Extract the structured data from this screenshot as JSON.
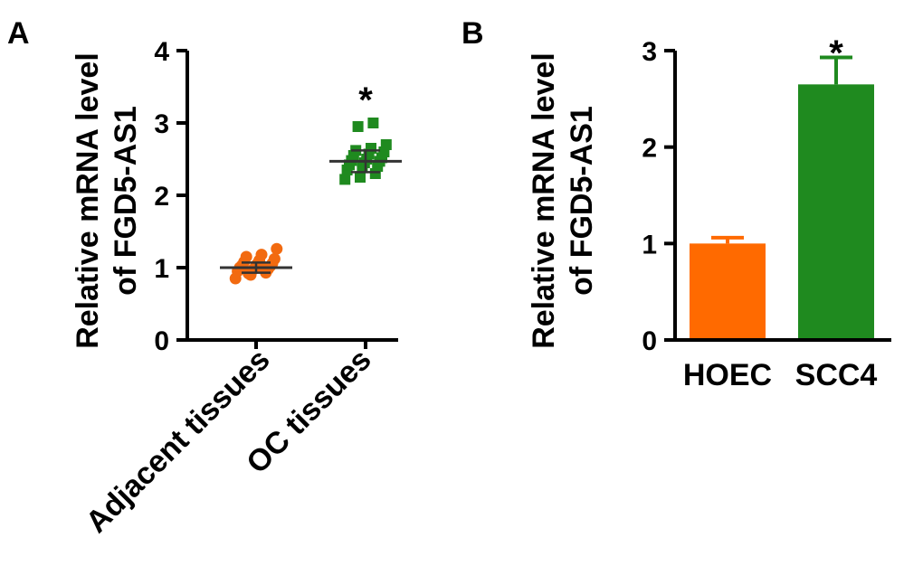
{
  "chart_data": [
    {
      "panel": "A",
      "type": "scatter",
      "ylabel_line1": "Relative mRNA level",
      "ylabel_line2": "of FGD5-AS1",
      "ylim": [
        0,
        4
      ],
      "yticks": [
        0,
        1,
        2,
        3,
        4
      ],
      "categories": [
        "Adjacent tissues",
        "OC tissues"
      ],
      "series": [
        {
          "name": "Adjacent tissues",
          "marker": "circle",
          "color": "#f26a10",
          "mean": 1.0,
          "sd": 0.07,
          "values": [
            0.85,
            0.9,
            0.93,
            0.95,
            0.97,
            0.98,
            1.0,
            1.0,
            1.02,
            1.03,
            1.05,
            1.06,
            1.08,
            1.1,
            1.12,
            1.15,
            1.18,
            1.26,
            0.92,
            0.99
          ]
        },
        {
          "name": "OC tissues",
          "marker": "square",
          "color": "#1f8a1f",
          "mean": 2.47,
          "sd": 0.15,
          "values": [
            2.22,
            2.25,
            2.3,
            2.35,
            2.38,
            2.4,
            2.42,
            2.45,
            2.47,
            2.48,
            2.5,
            2.52,
            2.55,
            2.57,
            2.6,
            2.62,
            2.65,
            2.7,
            2.95,
            3.0
          ]
        }
      ],
      "annotations": [
        {
          "category": "OC tissues",
          "text": "*"
        }
      ]
    },
    {
      "panel": "B",
      "type": "bar",
      "ylabel_line1": "Relative mRNA level",
      "ylabel_line2": "of FGD5-AS1",
      "ylim": [
        0,
        3
      ],
      "yticks": [
        0,
        1,
        2,
        3
      ],
      "categories": [
        "HOEC",
        "SCC4"
      ],
      "values": [
        1.0,
        2.65
      ],
      "errors": [
        0.06,
        0.28
      ],
      "colors": [
        "#ff6a00",
        "#1f8a1f"
      ],
      "annotations": [
        {
          "category": "SCC4",
          "text": "*"
        }
      ]
    }
  ]
}
